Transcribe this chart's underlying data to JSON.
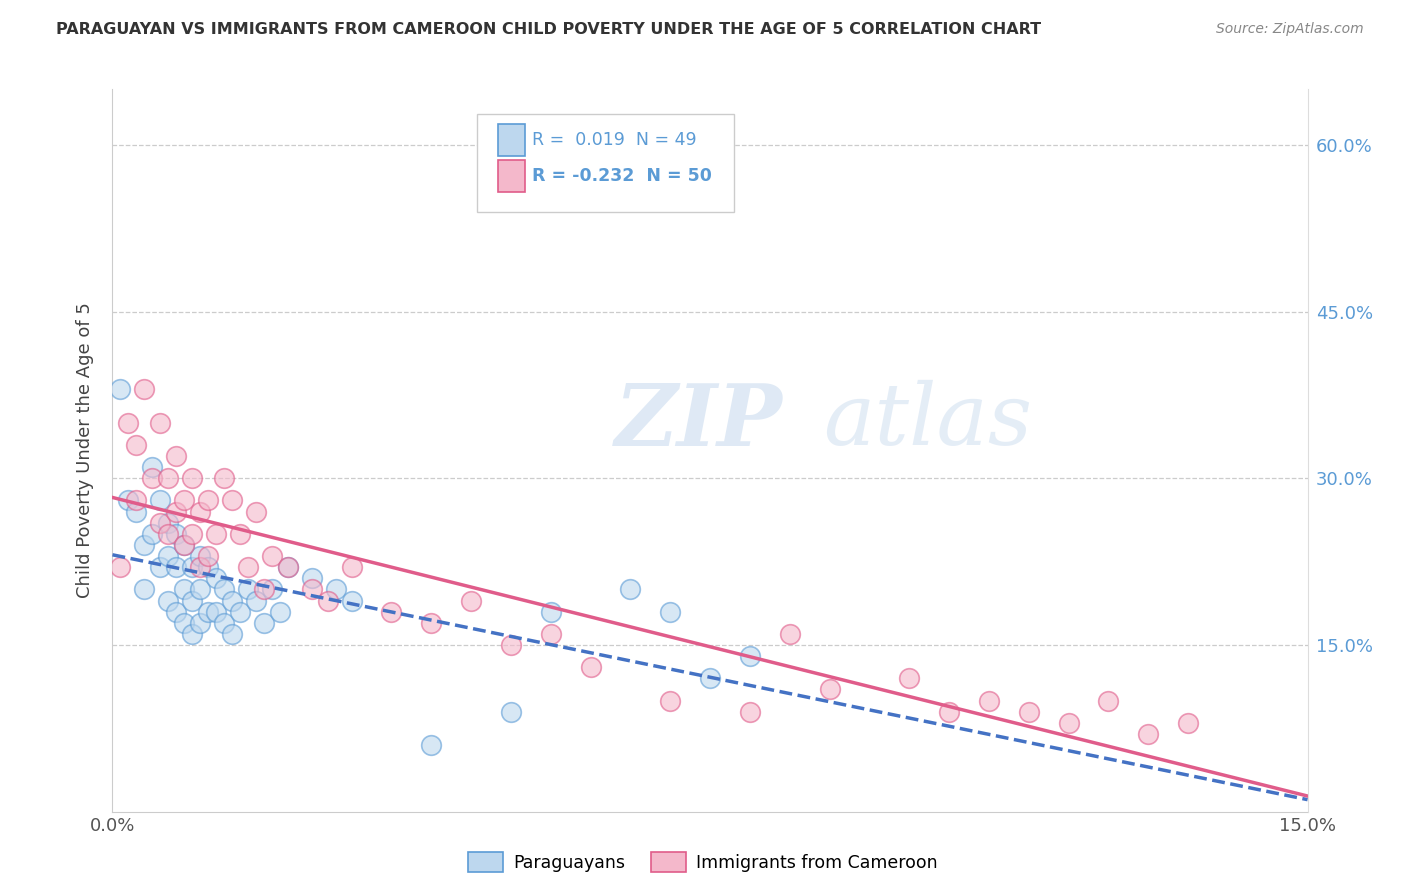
{
  "title": "PARAGUAYAN VS IMMIGRANTS FROM CAMEROON CHILD POVERTY UNDER THE AGE OF 5 CORRELATION CHART",
  "source": "Source: ZipAtlas.com",
  "ylabel": "Child Poverty Under the Age of 5",
  "xmin": 0.0,
  "xmax": 0.15,
  "ymin": 0.0,
  "ymax": 0.65,
  "right_yticks": [
    0.15,
    0.3,
    0.45,
    0.6
  ],
  "right_ytick_labels": [
    "15.0%",
    "30.0%",
    "45.0%",
    "60.0%"
  ],
  "paraguayan_line_color": "#4472c4",
  "cameroon_line_color": "#e05c8a",
  "paraguayan_fill_color": "#bdd7ee",
  "cameroon_fill_color": "#f4b8cb",
  "paraguayan_edge_color": "#5b9bd5",
  "cameroon_edge_color": "#e05c8a",
  "R_paraguayan": 0.019,
  "N_paraguayan": 49,
  "R_cameroon": -0.232,
  "N_cameroon": 50,
  "legend_label_paraguayan": "Paraguayans",
  "legend_label_cameroon": "Immigrants from Cameroon",
  "watermark_zip": "ZIP",
  "watermark_atlas": "atlas",
  "paraguayan_x": [
    0.001,
    0.002,
    0.003,
    0.004,
    0.004,
    0.005,
    0.005,
    0.006,
    0.006,
    0.007,
    0.007,
    0.007,
    0.008,
    0.008,
    0.008,
    0.009,
    0.009,
    0.009,
    0.01,
    0.01,
    0.01,
    0.011,
    0.011,
    0.011,
    0.012,
    0.012,
    0.013,
    0.013,
    0.014,
    0.014,
    0.015,
    0.015,
    0.016,
    0.017,
    0.018,
    0.019,
    0.02,
    0.021,
    0.022,
    0.025,
    0.028,
    0.03,
    0.04,
    0.05,
    0.055,
    0.065,
    0.07,
    0.075,
    0.08
  ],
  "paraguayan_y": [
    0.38,
    0.28,
    0.27,
    0.24,
    0.2,
    0.31,
    0.25,
    0.28,
    0.22,
    0.26,
    0.23,
    0.19,
    0.25,
    0.22,
    0.18,
    0.24,
    0.2,
    0.17,
    0.22,
    0.19,
    0.16,
    0.23,
    0.2,
    0.17,
    0.22,
    0.18,
    0.21,
    0.18,
    0.2,
    0.17,
    0.19,
    0.16,
    0.18,
    0.2,
    0.19,
    0.17,
    0.2,
    0.18,
    0.22,
    0.21,
    0.2,
    0.19,
    0.06,
    0.09,
    0.18,
    0.2,
    0.18,
    0.12,
    0.14
  ],
  "cameroon_x": [
    0.001,
    0.002,
    0.003,
    0.003,
    0.004,
    0.005,
    0.006,
    0.006,
    0.007,
    0.007,
    0.008,
    0.008,
    0.009,
    0.009,
    0.01,
    0.01,
    0.011,
    0.011,
    0.012,
    0.012,
    0.013,
    0.014,
    0.015,
    0.016,
    0.017,
    0.018,
    0.019,
    0.02,
    0.022,
    0.025,
    0.027,
    0.03,
    0.035,
    0.04,
    0.045,
    0.05,
    0.055,
    0.06,
    0.07,
    0.08,
    0.085,
    0.09,
    0.1,
    0.105,
    0.11,
    0.115,
    0.12,
    0.125,
    0.13,
    0.135
  ],
  "cameroon_y": [
    0.22,
    0.35,
    0.33,
    0.28,
    0.38,
    0.3,
    0.35,
    0.26,
    0.3,
    0.25,
    0.32,
    0.27,
    0.28,
    0.24,
    0.3,
    0.25,
    0.27,
    0.22,
    0.28,
    0.23,
    0.25,
    0.3,
    0.28,
    0.25,
    0.22,
    0.27,
    0.2,
    0.23,
    0.22,
    0.2,
    0.19,
    0.22,
    0.18,
    0.17,
    0.19,
    0.15,
    0.16,
    0.13,
    0.1,
    0.09,
    0.16,
    0.11,
    0.12,
    0.09,
    0.1,
    0.09,
    0.08,
    0.1,
    0.07,
    0.08
  ]
}
